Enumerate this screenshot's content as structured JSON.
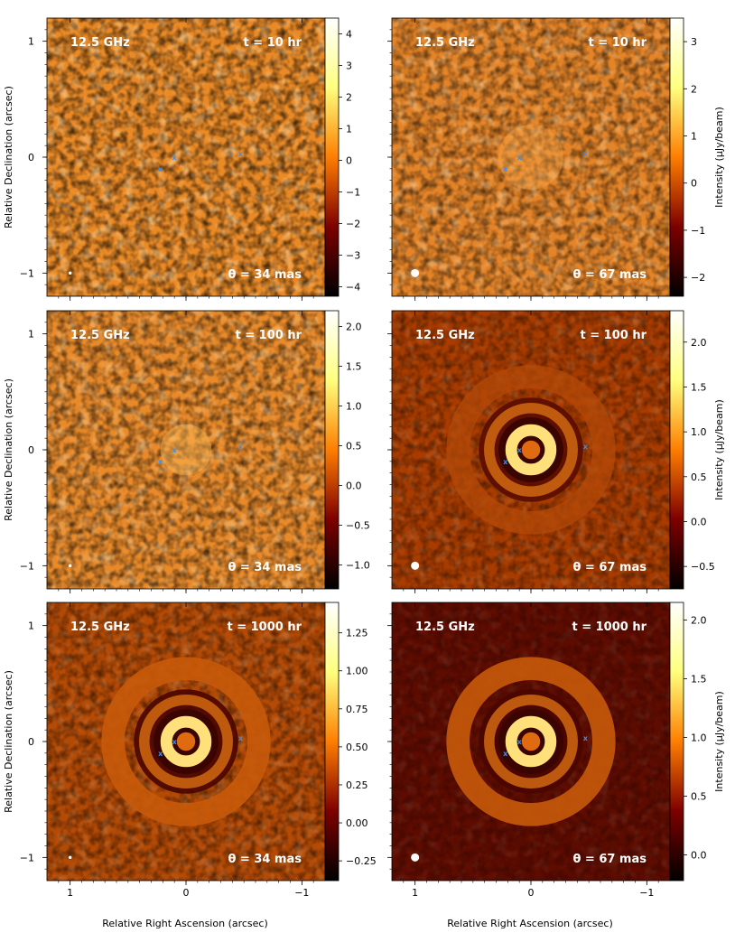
{
  "chart_data": {
    "type": "heatmap",
    "shared": {
      "xlabel": "Relative Right Ascension (arcsec)",
      "ylabel": "Relative Declination (arcsec)",
      "colorbar_label": "Intensity (μJy/beam)",
      "x_ticks": [
        1,
        0,
        -1
      ],
      "y_ticks": [
        1,
        0,
        -1
      ],
      "xlim": [
        1.2,
        -1.2
      ],
      "ylim": [
        -1.2,
        1.2
      ],
      "colormap": "afmhot",
      "markers": [
        {
          "label": "x",
          "x": 0.22,
          "y": -0.1
        },
        {
          "label": "x",
          "x": 0.1,
          "y": 0.0
        },
        {
          "label": "x",
          "x": -0.47,
          "y": 0.03
        }
      ],
      "marker_color": "#3b8fe6"
    },
    "panels": [
      {
        "id": "a",
        "freq": "12.5 GHz",
        "time": "t = 10 hr",
        "beam": "θ = 34 mas",
        "colorbar_ticks": [
          "4",
          "3",
          "2",
          "1",
          "0",
          "−1",
          "−2",
          "−3",
          "−4"
        ],
        "colorbar_range": [
          -4.3,
          4.5
        ],
        "colorbar_label_shown": false
      },
      {
        "id": "b",
        "freq": "12.5 GHz",
        "time": "t = 10 hr",
        "beam": "θ = 67 mas",
        "colorbar_ticks": [
          "3",
          "2",
          "1",
          "0",
          "−1",
          "−2"
        ],
        "colorbar_range": [
          -2.4,
          3.5
        ],
        "colorbar_label_shown": true
      },
      {
        "id": "c",
        "freq": "12.5 GHz",
        "time": "t = 100 hr",
        "beam": "θ = 34 mas",
        "colorbar_ticks": [
          "2.0",
          "1.5",
          "1.0",
          "0.5",
          "0.0",
          "−0.5",
          "−1.0"
        ],
        "colorbar_range": [
          -1.3,
          2.2
        ],
        "colorbar_label_shown": false
      },
      {
        "id": "d",
        "freq": "12.5 GHz",
        "time": "t = 100 hr",
        "beam": "θ = 67 mas",
        "colorbar_ticks": [
          "2.0",
          "1.5",
          "1.0",
          "0.5",
          "0.0",
          "−0.5"
        ],
        "colorbar_range": [
          -0.75,
          2.35
        ],
        "colorbar_label_shown": true
      },
      {
        "id": "e",
        "freq": "12.5 GHz",
        "time": "t = 1000 hr",
        "beam": "θ = 34 mas",
        "colorbar_ticks": [
          "1.25",
          "1.00",
          "0.75",
          "0.50",
          "0.25",
          "0.00",
          "−0.25"
        ],
        "colorbar_range": [
          -0.38,
          1.45
        ],
        "colorbar_label_shown": false
      },
      {
        "id": "f",
        "freq": "12.5 GHz",
        "time": "t = 1000 hr",
        "beam": "θ = 67 mas",
        "colorbar_ticks": [
          "2.0",
          "1.5",
          "1.0",
          "0.5",
          "0.0"
        ],
        "colorbar_range": [
          -0.22,
          2.15
        ],
        "colorbar_label_shown": true
      }
    ]
  }
}
